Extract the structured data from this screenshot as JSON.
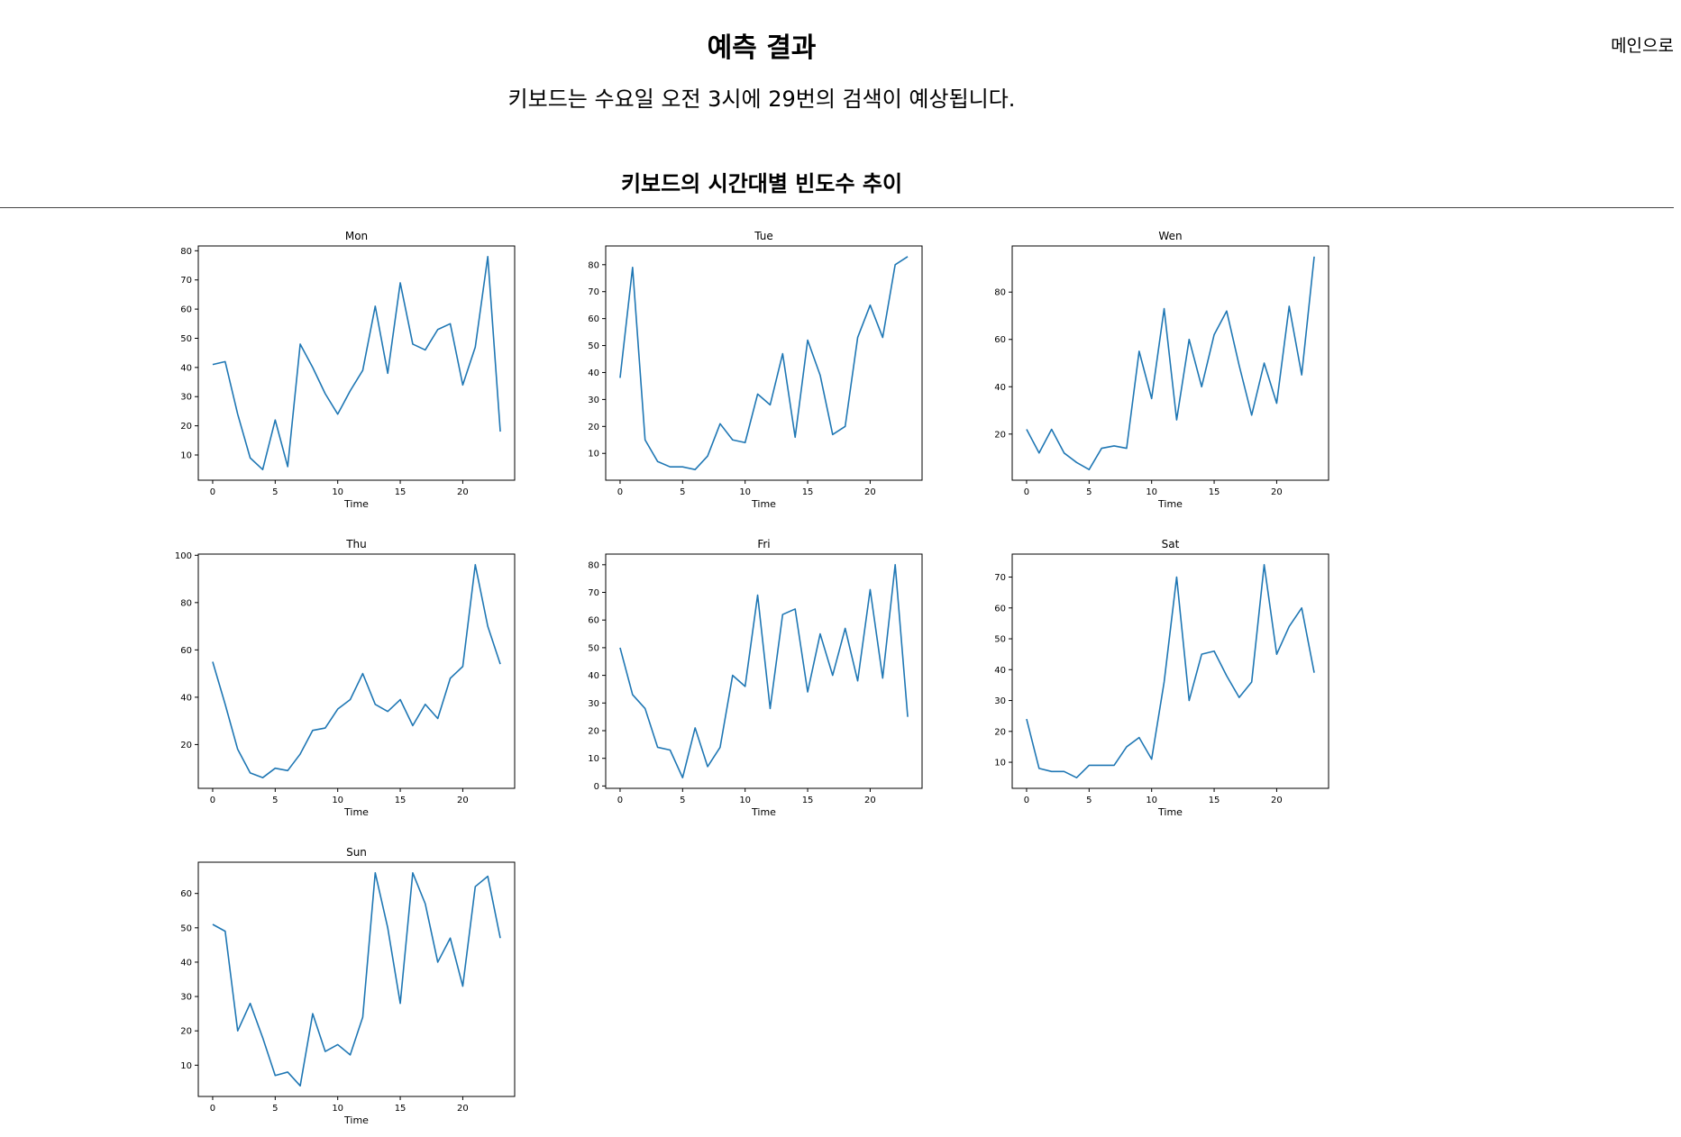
{
  "header": {
    "title": "예측 결과",
    "main_link": "메인으로"
  },
  "prediction": {
    "text": "키보드는 수요일 오전 3시에 29번의 검색이 예상됩니다."
  },
  "section": {
    "title": "키보드의 시간대별 빈도수 추이"
  },
  "colors": {
    "line": "#1f77b4"
  },
  "chart_data": [
    {
      "type": "line",
      "title": "Mon",
      "xlabel": "Time",
      "ylabel": "",
      "x": [
        0,
        1,
        2,
        3,
        4,
        5,
        6,
        7,
        8,
        9,
        10,
        11,
        12,
        13,
        14,
        15,
        16,
        17,
        18,
        19,
        20,
        21,
        22,
        23
      ],
      "values": [
        41,
        42,
        24,
        9,
        5,
        22,
        6,
        48,
        40,
        31,
        24,
        32,
        39,
        61,
        38,
        69,
        48,
        46,
        53,
        55,
        34,
        47,
        78,
        18
      ],
      "xticks": [
        0,
        5,
        10,
        15,
        20
      ],
      "yticks": [
        10,
        20,
        30,
        40,
        50,
        60,
        70,
        80
      ],
      "ylim": [
        1.35,
        81.65
      ],
      "xlim": [
        -1.15,
        24.15
      ],
      "grid": false,
      "legend": "none"
    },
    {
      "type": "line",
      "title": "Tue",
      "xlabel": "Time",
      "ylabel": "",
      "x": [
        0,
        1,
        2,
        3,
        4,
        5,
        6,
        7,
        8,
        9,
        10,
        11,
        12,
        13,
        14,
        15,
        16,
        17,
        18,
        19,
        20,
        21,
        22,
        23
      ],
      "values": [
        38,
        79,
        15,
        7,
        5,
        5,
        4,
        9,
        21,
        15,
        14,
        32,
        28,
        47,
        16,
        52,
        39,
        17,
        20,
        53,
        65,
        53,
        80,
        83
      ],
      "xticks": [
        0,
        5,
        10,
        15,
        20
      ],
      "yticks": [
        10,
        20,
        30,
        40,
        50,
        60,
        70,
        80
      ],
      "ylim": [
        0.05,
        86.95
      ],
      "xlim": [
        -1.15,
        24.15
      ],
      "grid": false,
      "legend": "none"
    },
    {
      "type": "line",
      "title": "Wen",
      "xlabel": "Time",
      "ylabel": "",
      "x": [
        0,
        1,
        2,
        3,
        4,
        5,
        6,
        7,
        8,
        9,
        10,
        11,
        12,
        13,
        14,
        15,
        16,
        17,
        18,
        19,
        20,
        21,
        22,
        23
      ],
      "values": [
        22,
        12,
        22,
        12,
        8,
        5,
        14,
        15,
        14,
        55,
        35,
        73,
        26,
        60,
        40,
        62,
        72,
        49,
        28,
        50,
        33,
        74,
        45,
        95
      ],
      "xticks": [
        0,
        5,
        10,
        15,
        20
      ],
      "yticks": [
        20,
        40,
        60,
        80
      ],
      "ylim": [
        0.5,
        99.5
      ],
      "xlim": [
        -1.15,
        24.15
      ],
      "grid": false,
      "legend": "none"
    },
    {
      "type": "line",
      "title": "Thu",
      "xlabel": "Time",
      "ylabel": "",
      "x": [
        0,
        1,
        2,
        3,
        4,
        5,
        6,
        7,
        8,
        9,
        10,
        11,
        12,
        13,
        14,
        15,
        16,
        17,
        18,
        19,
        20,
        21,
        22,
        23
      ],
      "values": [
        55,
        37,
        18,
        8,
        6,
        10,
        9,
        16,
        26,
        27,
        35,
        39,
        50,
        37,
        34,
        39,
        28,
        37,
        31,
        48,
        53,
        96,
        70,
        54
      ],
      "xticks": [
        0,
        5,
        10,
        15,
        20
      ],
      "yticks": [
        20,
        40,
        60,
        80,
        100
      ],
      "ylim": [
        1.5,
        100.5
      ],
      "xlim": [
        -1.15,
        24.15
      ],
      "grid": false,
      "legend": "none"
    },
    {
      "type": "line",
      "title": "Fri",
      "xlabel": "Time",
      "ylabel": "",
      "x": [
        0,
        1,
        2,
        3,
        4,
        5,
        6,
        7,
        8,
        9,
        10,
        11,
        12,
        13,
        14,
        15,
        16,
        17,
        18,
        19,
        20,
        21,
        22,
        23
      ],
      "values": [
        50,
        33,
        28,
        14,
        13,
        3,
        21,
        7,
        14,
        40,
        36,
        69,
        28,
        62,
        64,
        34,
        55,
        40,
        57,
        38,
        71,
        39,
        80,
        25
      ],
      "xticks": [
        0,
        5,
        10,
        15,
        20
      ],
      "yticks": [
        0,
        10,
        20,
        30,
        40,
        50,
        60,
        70,
        80
      ],
      "ylim": [
        -0.85,
        83.85
      ],
      "xlim": [
        -1.15,
        24.15
      ],
      "grid": false,
      "legend": "none"
    },
    {
      "type": "line",
      "title": "Sat",
      "xlabel": "Time",
      "ylabel": "",
      "x": [
        0,
        1,
        2,
        3,
        4,
        5,
        6,
        7,
        8,
        9,
        10,
        11,
        12,
        13,
        14,
        15,
        16,
        17,
        18,
        19,
        20,
        21,
        22,
        23
      ],
      "values": [
        24,
        8,
        7,
        7,
        5,
        9,
        9,
        9,
        15,
        18,
        11,
        36,
        70,
        30,
        45,
        46,
        38,
        31,
        36,
        74,
        45,
        54,
        60,
        39
      ],
      "xticks": [
        0,
        5,
        10,
        15,
        20
      ],
      "yticks": [
        10,
        20,
        30,
        40,
        50,
        60,
        70
      ],
      "ylim": [
        1.55,
        77.45
      ],
      "xlim": [
        -1.15,
        24.15
      ],
      "grid": false,
      "legend": "none"
    },
    {
      "type": "line",
      "title": "Sun",
      "xlabel": "Time",
      "ylabel": "",
      "x": [
        0,
        1,
        2,
        3,
        4,
        5,
        6,
        7,
        8,
        9,
        10,
        11,
        12,
        13,
        14,
        15,
        16,
        17,
        18,
        19,
        20,
        21,
        22,
        23
      ],
      "values": [
        51,
        49,
        20,
        28,
        18,
        7,
        8,
        4,
        25,
        14,
        16,
        13,
        24,
        66,
        50,
        28,
        66,
        57,
        40,
        47,
        33,
        62,
        65,
        47
      ],
      "xticks": [
        0,
        5,
        10,
        15,
        20
      ],
      "yticks": [
        10,
        20,
        30,
        40,
        50,
        60
      ],
      "ylim": [
        0.9,
        69.1
      ],
      "xlim": [
        -1.15,
        24.15
      ],
      "grid": false,
      "legend": "none"
    }
  ]
}
